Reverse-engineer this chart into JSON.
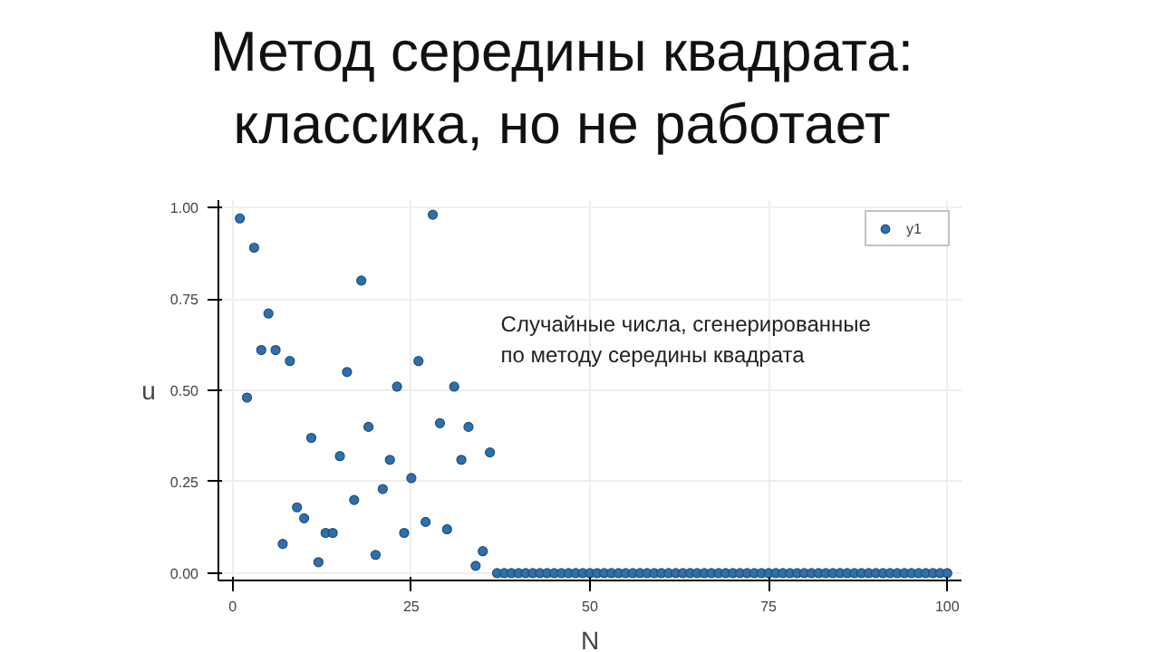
{
  "chart_data": {
    "type": "scatter",
    "title": "Метод середины квадрата: классика, но не работает",
    "xlabel": "N",
    "ylabel": "u",
    "annotations": [
      "Случайные числа, сгенерированные по методу середины квадрата"
    ],
    "x": [
      1,
      2,
      3,
      4,
      5,
      6,
      7,
      8,
      9,
      10,
      11,
      12,
      13,
      14,
      15,
      16,
      17,
      18,
      19,
      20,
      21,
      22,
      23,
      24,
      25,
      26,
      27,
      28,
      29,
      30,
      31,
      32,
      33,
      34,
      35,
      36,
      37,
      38,
      39,
      40,
      41,
      42,
      43,
      44,
      45,
      46,
      47,
      48,
      49,
      50,
      51,
      52,
      53,
      54,
      55,
      56,
      57,
      58,
      59,
      60,
      61,
      62,
      63,
      64,
      65,
      66,
      67,
      68,
      69,
      70,
      71,
      72,
      73,
      74,
      75,
      76,
      77,
      78,
      79,
      80,
      81,
      82,
      83,
      84,
      85,
      86,
      87,
      88,
      89,
      90,
      91,
      92,
      93,
      94,
      95,
      96,
      97,
      98,
      99,
      100
    ],
    "series": [
      {
        "name": "y1",
        "color": "#2f6faa",
        "values": [
          0.97,
          0.48,
          0.89,
          0.61,
          0.71,
          0.61,
          0.08,
          0.58,
          0.18,
          0.15,
          0.37,
          0.03,
          0.11,
          0.11,
          0.32,
          0.55,
          0.2,
          0.8,
          0.4,
          0.05,
          0.23,
          0.31,
          0.51,
          0.11,
          0.26,
          0.58,
          0.14,
          0.98,
          0.41,
          0.12,
          0.51,
          0.31,
          0.4,
          0.02,
          0.06,
          0.33,
          0,
          0,
          0,
          0,
          0,
          0,
          0,
          0,
          0,
          0,
          0,
          0,
          0,
          0,
          0,
          0,
          0,
          0,
          0,
          0,
          0,
          0,
          0,
          0,
          0,
          0,
          0,
          0,
          0,
          0,
          0,
          0,
          0,
          0,
          0,
          0,
          0,
          0,
          0,
          0,
          0,
          0,
          0,
          0,
          0,
          0,
          0,
          0,
          0,
          0,
          0,
          0,
          0,
          0,
          0,
          0,
          0,
          0,
          0,
          0,
          0,
          0,
          0,
          0
        ]
      }
    ],
    "xlim": [
      -2,
      102
    ],
    "ylim": [
      -0.02,
      1.02
    ],
    "xticks": [
      0,
      25,
      50,
      75,
      100
    ],
    "yticks": [
      {
        "value": 0,
        "label": "0.00"
      },
      {
        "value": 0.25,
        "label": "0.25"
      },
      {
        "value": 0.5,
        "label": "0.50"
      },
      {
        "value": 0.75,
        "label": "0.75"
      },
      {
        "value": 1,
        "label": "1.00"
      }
    ],
    "grid": true,
    "legend": "top right",
    "marker": "circle"
  }
}
